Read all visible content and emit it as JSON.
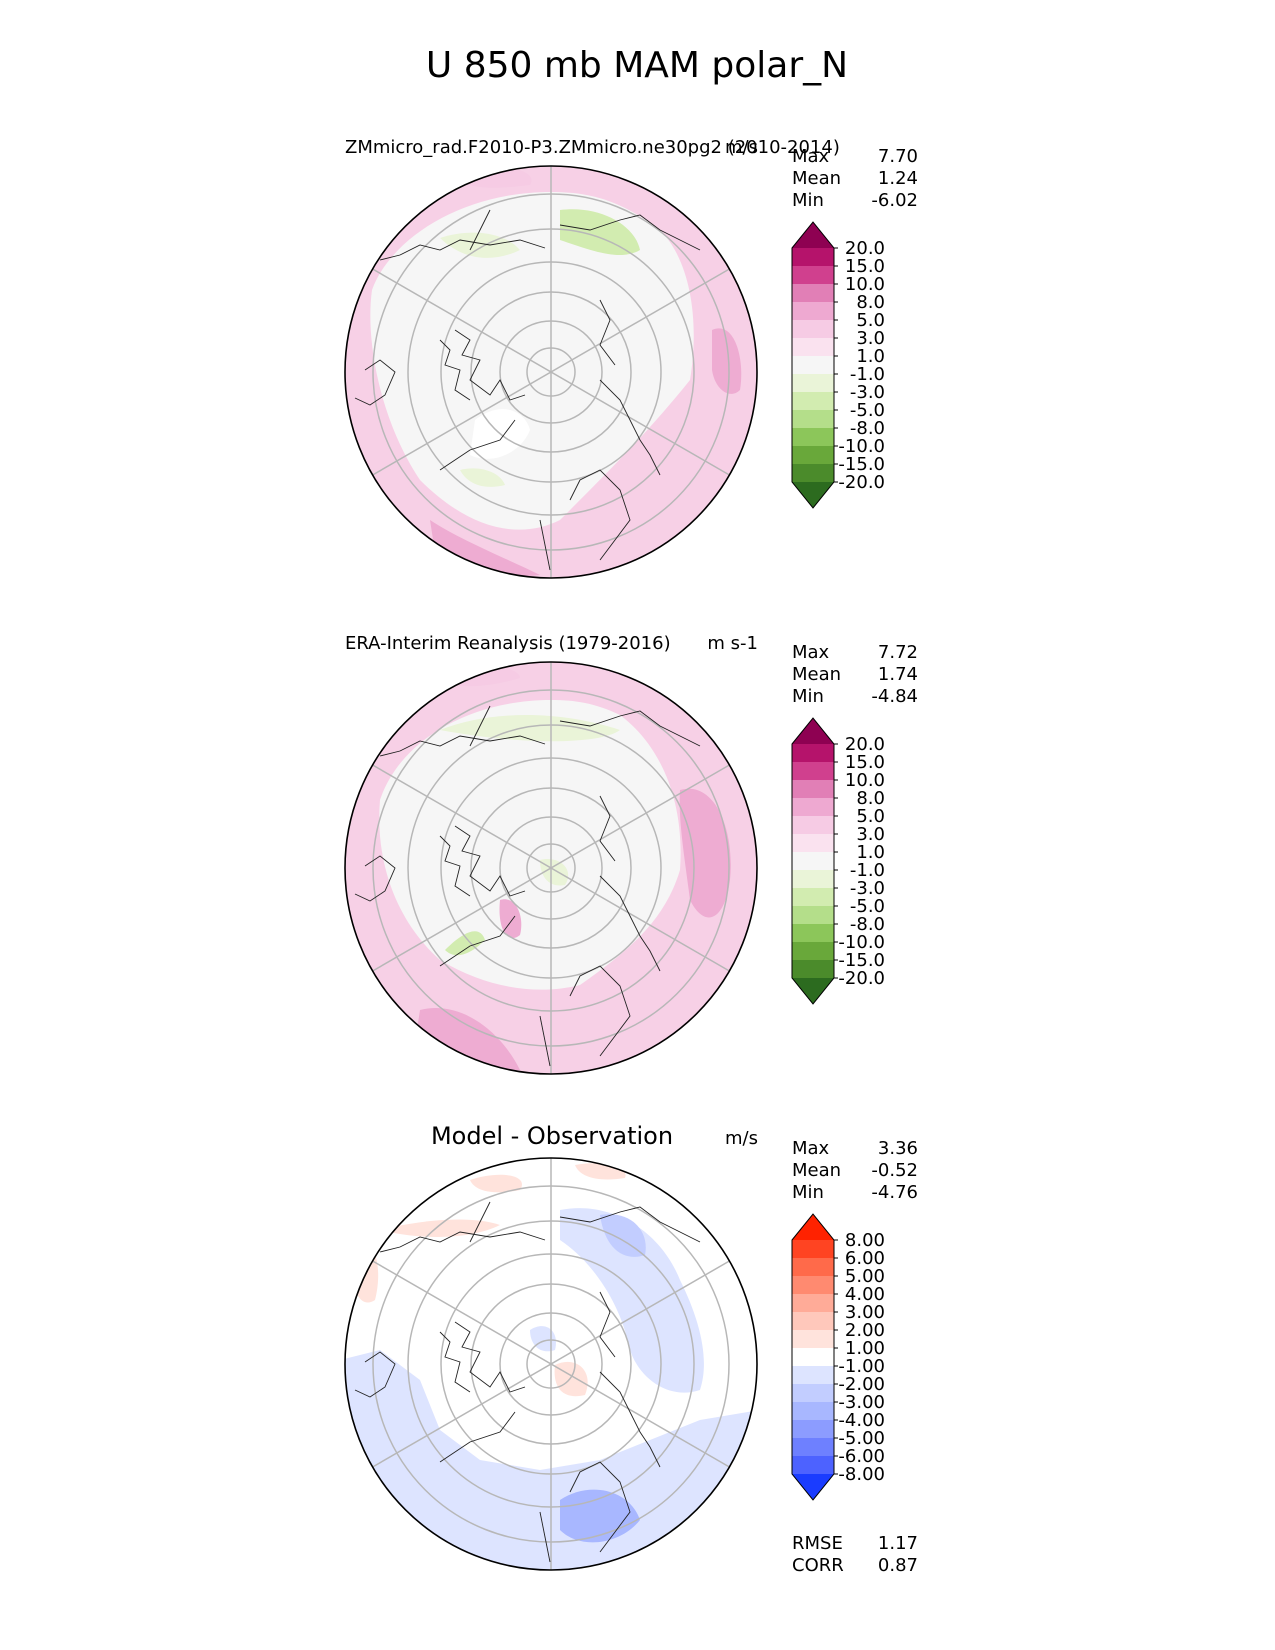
{
  "chart_data": {
    "type": "heatmap",
    "title": "U 850 mb MAM polar_N",
    "panels": [
      {
        "id": "test",
        "subtitle_left": "ZMmicro_rad.F2010-P3.ZMmicro.ne30pg2 (2010-2014)",
        "units": "m/s",
        "stats": [
          {
            "label": "Max",
            "value": "7.70"
          },
          {
            "label": "Mean",
            "value": "1.24"
          },
          {
            "label": "Min",
            "value": "-6.02"
          }
        ],
        "colorbar": {
          "levels": [
            "20.0",
            "15.0",
            "10.0",
            "8.0",
            "5.0",
            "3.0",
            "1.0",
            "-1.0",
            "-3.0",
            "-5.0",
            "-8.0",
            "-10.0",
            "-15.0",
            "-20.0"
          ],
          "colors": [
            "#8e0152",
            "#b5136b",
            "#d0408e",
            "#e17fb6",
            "#eea9d1",
            "#f6cbe4",
            "#fae2ef",
            "#f6f6f6",
            "#eaf4d8",
            "#d2ecb0",
            "#b4de8a",
            "#8cc65a",
            "#69a83a",
            "#4b8b2b",
            "#2c6b1f"
          ]
        }
      },
      {
        "id": "reference",
        "subtitle_left": "ERA-Interim Reanalysis (1979-2016)",
        "units": "m s-1",
        "stats": [
          {
            "label": "Max",
            "value": "7.72"
          },
          {
            "label": "Mean",
            "value": "1.74"
          },
          {
            "label": "Min",
            "value": "-4.84"
          }
        ],
        "colorbar": {
          "levels": [
            "20.0",
            "15.0",
            "10.0",
            "8.0",
            "5.0",
            "3.0",
            "1.0",
            "-1.0",
            "-3.0",
            "-5.0",
            "-8.0",
            "-10.0",
            "-15.0",
            "-20.0"
          ],
          "colors": [
            "#8e0152",
            "#b5136b",
            "#d0408e",
            "#e17fb6",
            "#eea9d1",
            "#f6cbe4",
            "#fae2ef",
            "#f6f6f6",
            "#eaf4d8",
            "#d2ecb0",
            "#b4de8a",
            "#8cc65a",
            "#69a83a",
            "#4b8b2b",
            "#2c6b1f"
          ]
        }
      },
      {
        "id": "difference",
        "subtitle_center": "Model - Observation",
        "units": "m/s",
        "stats": [
          {
            "label": "Max",
            "value": "3.36"
          },
          {
            "label": "Mean",
            "value": "-0.52"
          },
          {
            "label": "Min",
            "value": "-4.76"
          }
        ],
        "extra_stats": [
          {
            "label": "RMSE",
            "value": "1.17"
          },
          {
            "label": "CORR",
            "value": "0.87"
          }
        ],
        "colorbar": {
          "levels": [
            "8.00",
            "6.00",
            "5.00",
            "4.00",
            "3.00",
            "2.00",
            "1.00",
            "-1.00",
            "-2.00",
            "-3.00",
            "-4.00",
            "-5.00",
            "-6.00",
            "-8.00"
          ],
          "colors": [
            "#ff2200",
            "#ff4422",
            "#ff6a4a",
            "#ff8a70",
            "#ffab98",
            "#ffc8bb",
            "#ffe3dc",
            "#ffffff",
            "#dde4ff",
            "#c2cdff",
            "#a8b7ff",
            "#8c9cff",
            "#6e80ff",
            "#4d62ff",
            "#1a3cff"
          ]
        }
      }
    ]
  }
}
